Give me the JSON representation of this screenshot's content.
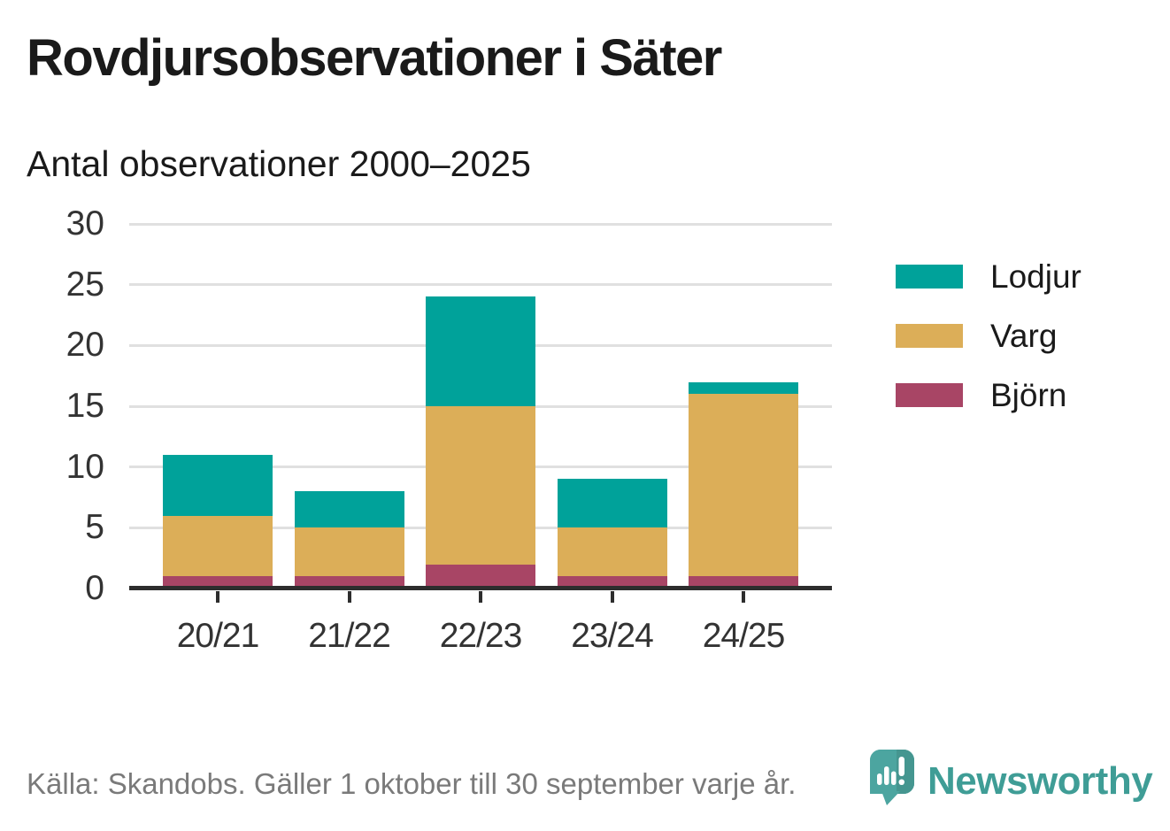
{
  "chart_data": {
    "type": "bar",
    "stacked": true,
    "title": "Rovdjursobservationer i Säter",
    "subtitle": "Antal observationer 2000–2025",
    "categories": [
      "20/21",
      "21/22",
      "22/23",
      "23/24",
      "24/25"
    ],
    "series": [
      {
        "name": "Lodjur",
        "color": "#00a29a",
        "values": [
          5,
          3,
          9,
          4,
          1
        ]
      },
      {
        "name": "Varg",
        "color": "#dcae58",
        "values": [
          5,
          4,
          13,
          4,
          15
        ]
      },
      {
        "name": "Björn",
        "color": "#a84565",
        "values": [
          1,
          1,
          2,
          1,
          1
        ]
      }
    ],
    "stack_order_bottom_to_top": [
      "Björn",
      "Varg",
      "Lodjur"
    ],
    "totals": [
      11,
      8,
      24,
      9,
      17
    ],
    "xlabel": "",
    "ylabel": "",
    "ylim": [
      0,
      30
    ],
    "yticks": [
      0,
      5,
      10,
      15,
      20,
      25,
      30
    ],
    "grid": true,
    "legend_position": "right"
  },
  "footer": {
    "source": "Källa: Skandobs. Gäller 1 oktober till 30 september varje år.",
    "brand": "Newsworthy"
  },
  "colors": {
    "axis": "#2d2d2d",
    "gridline": "#e0e0e0",
    "tick_label": "#333333",
    "title": "#1a1a1a",
    "footer_text": "#7a7a7a",
    "brand_text": "#3f9d96",
    "logo_teal": "#4ca5a0",
    "logo_teal_dark": "#459690",
    "logo_bars": "#ffffff"
  }
}
